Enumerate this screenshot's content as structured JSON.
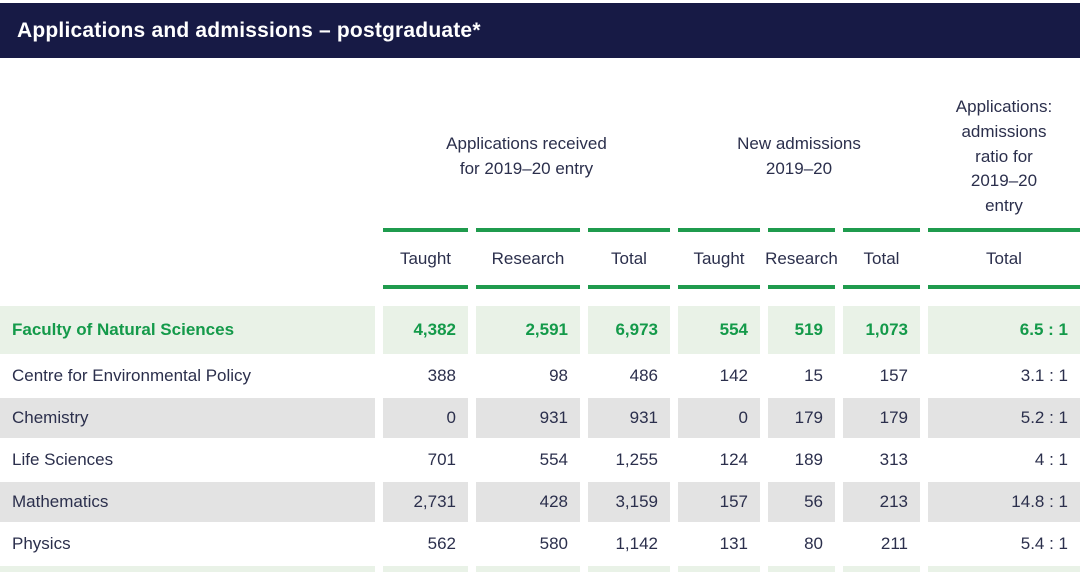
{
  "banner": {
    "title": "Applications and admissions – postgraduate*"
  },
  "colors": {
    "navy": "#171a45",
    "green": "#1f9b4d",
    "green_text": "#149a4a",
    "light_green": "#e9f2e7",
    "row_gray": "#e3e3e3",
    "ink": "#2b2f4c"
  },
  "table": {
    "group_headers": [
      {
        "label": "Applications received\nfor 2019–20 entry"
      },
      {
        "label": "New admissions\n2019–20"
      },
      {
        "label": "Applications:\nadmissions\nratio for\n2019–20\nentry"
      }
    ],
    "columns": [
      "Taught",
      "Research",
      "Total",
      "Taught",
      "Research",
      "Total",
      "Total"
    ],
    "rows": [
      {
        "label": "Faculty of Natural Sciences",
        "highlight": true,
        "values": [
          "4,382",
          "2,591",
          "6,973",
          "554",
          "519",
          "1,073",
          "6.5 : 1"
        ]
      },
      {
        "label": "Centre for Environmental Policy",
        "highlight": false,
        "values": [
          "388",
          "98",
          "486",
          "142",
          "15",
          "157",
          "3.1 : 1"
        ]
      },
      {
        "label": "Chemistry",
        "highlight": false,
        "values": [
          "0",
          "931",
          "931",
          "0",
          "179",
          "179",
          "5.2 : 1"
        ]
      },
      {
        "label": "Life Sciences",
        "highlight": false,
        "values": [
          "701",
          "554",
          "1,255",
          "124",
          "189",
          "313",
          "4 : 1"
        ]
      },
      {
        "label": "Mathematics",
        "highlight": false,
        "values": [
          "2,731",
          "428",
          "3,159",
          "157",
          "56",
          "213",
          "14.8 : 1"
        ]
      },
      {
        "label": "Physics",
        "highlight": false,
        "values": [
          "562",
          "580",
          "1,142",
          "131",
          "80",
          "211",
          "5.4 : 1"
        ]
      }
    ]
  }
}
